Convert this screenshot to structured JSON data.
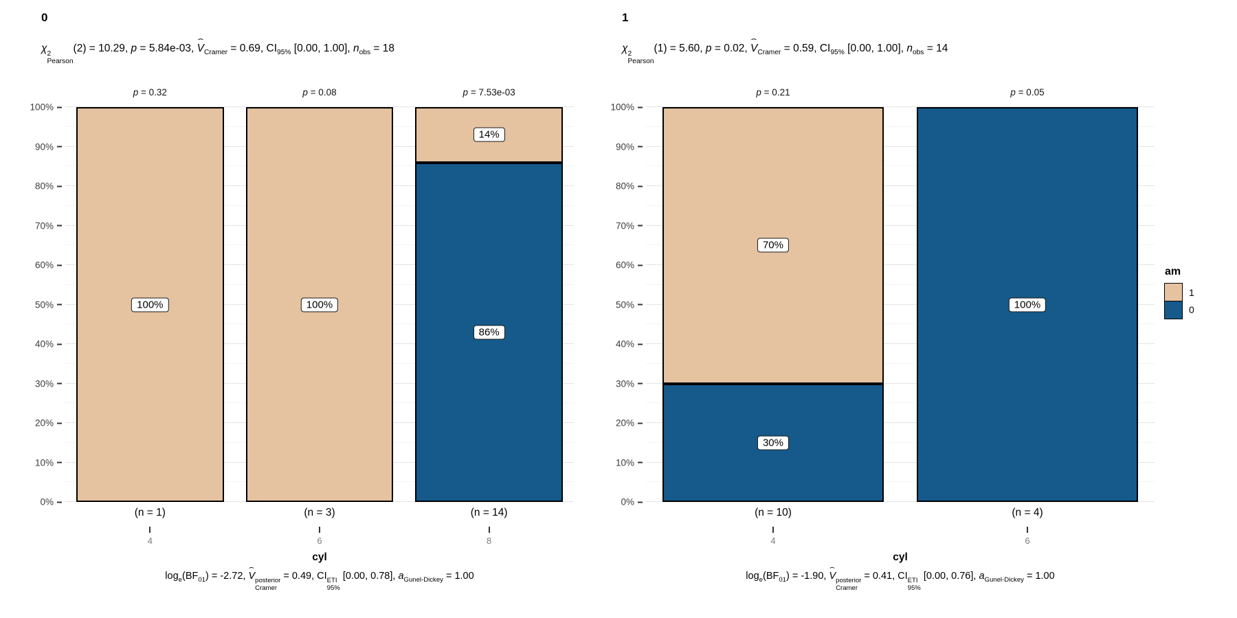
{
  "symbols": {
    "hat": "ˆ"
  },
  "legend": {
    "title": "am",
    "items": [
      {
        "label": "1",
        "color": "#E5C2A0"
      },
      {
        "label": "0",
        "color": "#155A8A"
      }
    ]
  },
  "chart_data": [
    {
      "type": "bar",
      "stacked": true,
      "percent_scale": true,
      "facet_title": "0",
      "subtitle_text": "χ²_Pearson(2) = 10.29, p = 5.84e-03, V̂_Cramer = 0.69, CI_95% [0.00, 1.00], n_obs = 18",
      "caption_text": "log_e(BF_01) = -2.72, V̂_Cramer^posterior = 0.49, CI_95%^ETI [0.00, 0.78], a_Gunel-Dickey = 1.00",
      "xlabel": "cyl",
      "categories": [
        "4",
        "6",
        "8"
      ],
      "n_labels": [
        "(n = 1)",
        "(n = 3)",
        "(n = 14)"
      ],
      "p_labels": [
        "p = 0.32",
        "p = 0.08",
        "p = 7.53e-03"
      ],
      "yticks": [
        "0%",
        "10%",
        "20%",
        "30%",
        "40%",
        "50%",
        "60%",
        "70%",
        "80%",
        "90%",
        "100%"
      ],
      "ylim": [
        0,
        100
      ],
      "series": [
        {
          "name": "1",
          "color": "#E5C2A0",
          "values": [
            100,
            100,
            14
          ],
          "labels": [
            "100%",
            "100%",
            "14%"
          ]
        },
        {
          "name": "0",
          "color": "#155A8A",
          "values": [
            0,
            0,
            86
          ],
          "labels": [
            "",
            "",
            "86%"
          ]
        }
      ],
      "subtitle_parts": {
        "chi": "χ",
        "df_sup": "2",
        "df_sub": "Pearson",
        "t1": "(2) = 10.29, ",
        "p_sym": "p",
        "t2": " = 5.84e-03, ",
        "v_sym": "V",
        "v_sub": "Cramer",
        "t3": " = 0.69, CI",
        "ci_sub": "95%",
        "t4": " [0.00, 1.00], ",
        "n_sym": "n",
        "n_sub": "obs",
        "t5": " = 18"
      },
      "caption_parts": {
        "t0": "log",
        "log_sub": "e",
        "t1": "(BF",
        "bf_sub": "01",
        "t2": ") = -2.72, ",
        "v_sym": "V",
        "v_sup": "posterior",
        "v_sub": "Cramer",
        "t3": " = 0.49, CI",
        "ci_sup": "ETI",
        "ci_sub": "95%",
        "t4": " [0.00, 0.78], ",
        "a_sym": "a",
        "a_sub": "Gunel-Dickey",
        "t5": " = 1.00"
      }
    },
    {
      "type": "bar",
      "stacked": true,
      "percent_scale": true,
      "facet_title": "1",
      "subtitle_text": "χ²_Pearson(1) = 5.60, p = 0.02, V̂_Cramer = 0.59, CI_95% [0.00, 1.00], n_obs = 14",
      "caption_text": "log_e(BF_01) = -1.90, V̂_Cramer^posterior = 0.41, CI_95%^ETI [0.00, 0.76], a_Gunel-Dickey = 1.00",
      "xlabel": "cyl",
      "categories": [
        "4",
        "6"
      ],
      "n_labels": [
        "(n = 10)",
        "(n = 4)"
      ],
      "p_labels": [
        "p = 0.21",
        "p = 0.05"
      ],
      "yticks": [
        "0%",
        "10%",
        "20%",
        "30%",
        "40%",
        "50%",
        "60%",
        "70%",
        "80%",
        "90%",
        "100%"
      ],
      "ylim": [
        0,
        100
      ],
      "series": [
        {
          "name": "1",
          "color": "#E5C2A0",
          "values": [
            70,
            0
          ],
          "labels": [
            "70%",
            ""
          ]
        },
        {
          "name": "0",
          "color": "#155A8A",
          "values": [
            30,
            100
          ],
          "labels": [
            "30%",
            "100%"
          ]
        }
      ],
      "subtitle_parts": {
        "chi": "χ",
        "df_sup": "2",
        "df_sub": "Pearson",
        "t1": "(1) = 5.60, ",
        "p_sym": "p",
        "t2": " = 0.02, ",
        "v_sym": "V",
        "v_sub": "Cramer",
        "t3": " = 0.59, CI",
        "ci_sub": "95%",
        "t4": " [0.00, 1.00], ",
        "n_sym": "n",
        "n_sub": "obs",
        "t5": " = 14"
      },
      "caption_parts": {
        "t0": "log",
        "log_sub": "e",
        "t1": "(BF",
        "bf_sub": "01",
        "t2": ") = -1.90, ",
        "v_sym": "V",
        "v_sup": "posterior",
        "v_sub": "Cramer",
        "t3": " = 0.41, CI",
        "ci_sup": "ETI",
        "ci_sub": "95%",
        "t4": " [0.00, 0.76], ",
        "a_sym": "a",
        "a_sub": "Gunel-Dickey",
        "t5": " = 1.00"
      }
    }
  ]
}
